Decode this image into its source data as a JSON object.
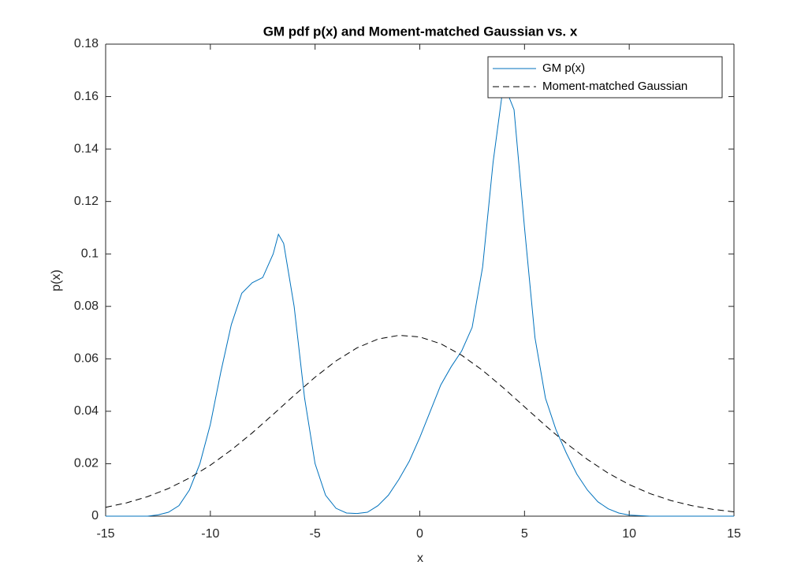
{
  "chart_data": {
    "type": "line",
    "title": "GM pdf p(x) and Moment-matched Gaussian vs. x",
    "xlabel": "x",
    "ylabel": "p(x)",
    "xlim": [
      -15,
      15
    ],
    "ylim": [
      0,
      0.18
    ],
    "xticks": [
      -15,
      -10,
      -5,
      0,
      5,
      10,
      15
    ],
    "yticks": [
      0,
      0.02,
      0.04,
      0.06,
      0.08,
      0.1,
      0.12,
      0.14,
      0.16,
      0.18
    ],
    "legend": "northeast",
    "box": true,
    "series": [
      {
        "name": "GM p(x)",
        "color": "#0072bd",
        "linestyle": "solid",
        "x": [
          -15,
          -14,
          -13,
          -12.5,
          -12,
          -11.5,
          -11,
          -10.5,
          -10,
          -9.5,
          -9,
          -8.5,
          -8,
          -7.5,
          -7,
          -6.75,
          -6.5,
          -6,
          -5.5,
          -5,
          -4.5,
          -4,
          -3.5,
          -3,
          -2.5,
          -2,
          -1.5,
          -1,
          -0.5,
          0,
          0.5,
          1,
          1.5,
          2,
          2.5,
          3,
          3.5,
          4,
          4.5,
          5,
          5.5,
          6,
          6.5,
          7,
          7.5,
          8,
          8.5,
          9,
          9.5,
          10,
          11,
          15
        ],
        "values": [
          0,
          0,
          0,
          0.0005,
          0.0015,
          0.004,
          0.01,
          0.02,
          0.035,
          0.055,
          0.073,
          0.085,
          0.089,
          0.091,
          0.1,
          0.1075,
          0.104,
          0.08,
          0.045,
          0.02,
          0.008,
          0.003,
          0.0012,
          0.001,
          0.0015,
          0.004,
          0.008,
          0.014,
          0.021,
          0.03,
          0.04,
          0.05,
          0.057,
          0.063,
          0.072,
          0.095,
          0.135,
          0.165,
          0.155,
          0.11,
          0.068,
          0.045,
          0.033,
          0.024,
          0.016,
          0.01,
          0.0055,
          0.0028,
          0.0012,
          0.0004,
          0,
          0
        ]
      },
      {
        "name": "Moment-matched Gaussian",
        "color": "#000000",
        "linestyle": "dashed",
        "x": [
          -15,
          -14,
          -13,
          -12,
          -11,
          -10,
          -9,
          -8,
          -7,
          -6,
          -5,
          -4,
          -3,
          -2,
          -1,
          0,
          1,
          2,
          3,
          4,
          5,
          6,
          7,
          8,
          9,
          10,
          11,
          12,
          13,
          14,
          15
        ],
        "values": [
          0.00338,
          0.00508,
          0.00743,
          0.01055,
          0.01454,
          0.01944,
          0.02523,
          0.03176,
          0.03883,
          0.04604,
          0.05299,
          0.0592,
          0.06417,
          0.06752,
          0.06896,
          0.06834,
          0.06574,
          0.06136,
          0.05559,
          0.04887,
          0.0417,
          0.03453,
          0.02775,
          0.02165,
          0.01639,
          0.01204,
          0.00858,
          0.00594,
          0.00399,
          0.0026,
          0.00164
        ]
      }
    ]
  }
}
